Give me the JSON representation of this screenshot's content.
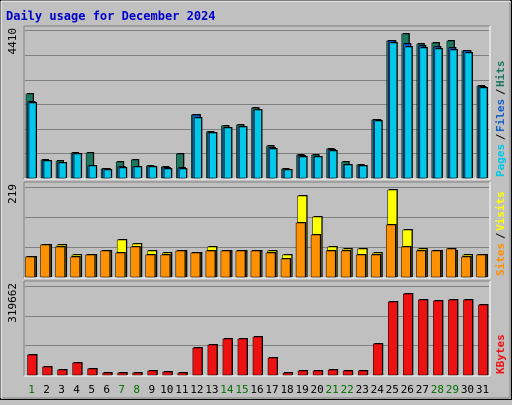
{
  "title": "Daily usage for December 2024",
  "colors": {
    "background": "#c0c0c0",
    "hits": "#1e7860",
    "files": "#1560c8",
    "pages": "#00c8e8",
    "visits": "#ffff00",
    "sites": "#ff9000",
    "kbytes": "#ee1111",
    "title_text": "#0000cc",
    "weekend_label": "#007000"
  },
  "chart_data": [
    {
      "type": "bar",
      "panel": "requests",
      "y_max_label": "4410",
      "ylim": [
        0,
        4410
      ],
      "grid": true,
      "legend": [
        {
          "name": "Pages",
          "color": "#00c8e8"
        },
        {
          "name": "Files",
          "color": "#1560c8"
        },
        {
          "name": "Hits",
          "color": "#1e7860"
        }
      ],
      "categories": [
        1,
        2,
        3,
        4,
        5,
        6,
        7,
        8,
        9,
        10,
        11,
        12,
        13,
        14,
        15,
        16,
        17,
        18,
        19,
        20,
        21,
        22,
        23,
        24,
        25,
        26,
        27,
        28,
        29,
        30,
        31
      ],
      "series": [
        {
          "name": "Hits",
          "values": [
            2570,
            550,
            520,
            780,
            760,
            290,
            500,
            560,
            370,
            330,
            720,
            1930,
            1420,
            1580,
            1620,
            2150,
            970,
            290,
            690,
            690,
            890,
            480,
            400,
            1770,
            4190,
            4410,
            4100,
            4140,
            4200,
            3880,
            2810
          ]
        },
        {
          "name": "Files",
          "values": [
            2320,
            520,
            470,
            740,
            380,
            270,
            340,
            350,
            350,
            300,
            300,
            1920,
            1380,
            1540,
            1560,
            2080,
            920,
            260,
            670,
            640,
            850,
            400,
            380,
            1770,
            4190,
            4100,
            4050,
            4020,
            3980,
            3900,
            2800
          ]
        },
        {
          "name": "Pages",
          "values": [
            2300,
            520,
            460,
            740,
            380,
            250,
            320,
            330,
            340,
            290,
            280,
            1850,
            1370,
            1530,
            1550,
            2070,
            900,
            250,
            650,
            630,
            840,
            390,
            370,
            1740,
            4120,
            4000,
            3990,
            3950,
            3920,
            3840,
            2770
          ]
        }
      ]
    },
    {
      "type": "bar",
      "panel": "visitors",
      "y_max_label": "219",
      "ylim": [
        0,
        219
      ],
      "grid": true,
      "legend": [
        {
          "name": "Sites",
          "color": "#ff9000"
        },
        {
          "name": "Visits",
          "color": "#ffff00"
        }
      ],
      "categories": [
        1,
        2,
        3,
        4,
        5,
        6,
        7,
        8,
        9,
        10,
        11,
        12,
        13,
        14,
        15,
        16,
        17,
        18,
        19,
        20,
        21,
        22,
        23,
        24,
        25,
        26,
        27,
        28,
        29,
        30,
        31
      ],
      "series": [
        {
          "name": "Visits",
          "values": [
            50,
            80,
            80,
            55,
            55,
            65,
            92,
            82,
            65,
            60,
            65,
            60,
            75,
            65,
            65,
            65,
            65,
            55,
            205,
            150,
            75,
            70,
            70,
            60,
            219,
            118,
            70,
            65,
            65,
            55,
            55
          ]
        },
        {
          "name": "Sites",
          "values": [
            50,
            80,
            75,
            50,
            55,
            65,
            60,
            75,
            55,
            55,
            65,
            60,
            65,
            65,
            65,
            65,
            60,
            45,
            135,
            105,
            65,
            65,
            55,
            55,
            130,
            75,
            65,
            65,
            70,
            50,
            55
          ]
        }
      ]
    },
    {
      "type": "bar",
      "panel": "kbytes",
      "y_max_label": "319662",
      "ylim": [
        0,
        319662
      ],
      "grid": true,
      "legend": [
        {
          "name": "KBytes",
          "color": "#ee1111"
        }
      ],
      "categories": [
        1,
        2,
        3,
        4,
        5,
        6,
        7,
        8,
        9,
        10,
        11,
        12,
        13,
        14,
        15,
        16,
        17,
        18,
        19,
        20,
        21,
        22,
        23,
        24,
        25,
        26,
        27,
        28,
        29,
        30,
        31
      ],
      "series": [
        {
          "name": "KBytes",
          "values": [
            75000,
            30000,
            20000,
            45000,
            22000,
            9000,
            9000,
            9000,
            16000,
            11000,
            8000,
            100000,
            112000,
            135000,
            135000,
            142000,
            65000,
            9000,
            14000,
            15000,
            17000,
            14000,
            14000,
            115000,
            270000,
            300000,
            280000,
            275000,
            278000,
            277000,
            262000
          ]
        }
      ]
    }
  ],
  "x_labels": [
    {
      "text": "1",
      "weekend": true
    },
    {
      "text": "2",
      "weekend": false
    },
    {
      "text": "3",
      "weekend": false
    },
    {
      "text": "4",
      "weekend": false
    },
    {
      "text": "5",
      "weekend": false
    },
    {
      "text": "6",
      "weekend": false
    },
    {
      "text": "7",
      "weekend": true
    },
    {
      "text": "8",
      "weekend": true
    },
    {
      "text": "9",
      "weekend": false
    },
    {
      "text": "10",
      "weekend": false
    },
    {
      "text": "11",
      "weekend": false
    },
    {
      "text": "12",
      "weekend": false
    },
    {
      "text": "13",
      "weekend": false
    },
    {
      "text": "14",
      "weekend": true
    },
    {
      "text": "15",
      "weekend": true
    },
    {
      "text": "16",
      "weekend": false
    },
    {
      "text": "17",
      "weekend": false
    },
    {
      "text": "18",
      "weekend": false
    },
    {
      "text": "19",
      "weekend": false
    },
    {
      "text": "20",
      "weekend": false
    },
    {
      "text": "21",
      "weekend": true
    },
    {
      "text": "22",
      "weekend": true
    },
    {
      "text": "23",
      "weekend": false
    },
    {
      "text": "24",
      "weekend": false
    },
    {
      "text": "25",
      "weekend": false
    },
    {
      "text": "26",
      "weekend": false
    },
    {
      "text": "27",
      "weekend": false
    },
    {
      "text": "28",
      "weekend": true
    },
    {
      "text": "29",
      "weekend": true
    },
    {
      "text": "30",
      "weekend": false
    },
    {
      "text": "31",
      "weekend": false
    }
  ]
}
